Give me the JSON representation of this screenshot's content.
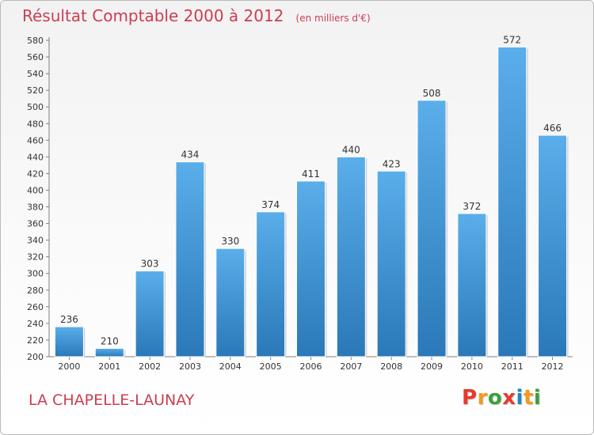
{
  "chart_data": {
    "type": "bar",
    "title": "Résultat Comptable 2000 à 2012",
    "subtitle": "(en milliers d'€)",
    "categories": [
      "2000",
      "2001",
      "2002",
      "2003",
      "2004",
      "2005",
      "2006",
      "2007",
      "2008",
      "2009",
      "2010",
      "2011",
      "2012"
    ],
    "values": [
      236,
      210,
      303,
      434,
      330,
      374,
      411,
      440,
      423,
      508,
      372,
      572,
      466
    ],
    "ylim": [
      200,
      580
    ],
    "ytick_step": 20,
    "grid": false,
    "bar_color_top": "#5aaeea",
    "bar_color_bottom": "#2a78b8"
  },
  "footer": {
    "commune": "LA CHAPELLE-LAUNAY",
    "logo_letters": [
      "P",
      "r",
      "o",
      "x",
      "i",
      "t",
      "i"
    ],
    "logo_colors": [
      "#e7392e",
      "#f39a1f",
      "#3aa13a",
      "#e7392e",
      "#1d88c8",
      "#f39a1f",
      "#3aa13a"
    ]
  }
}
